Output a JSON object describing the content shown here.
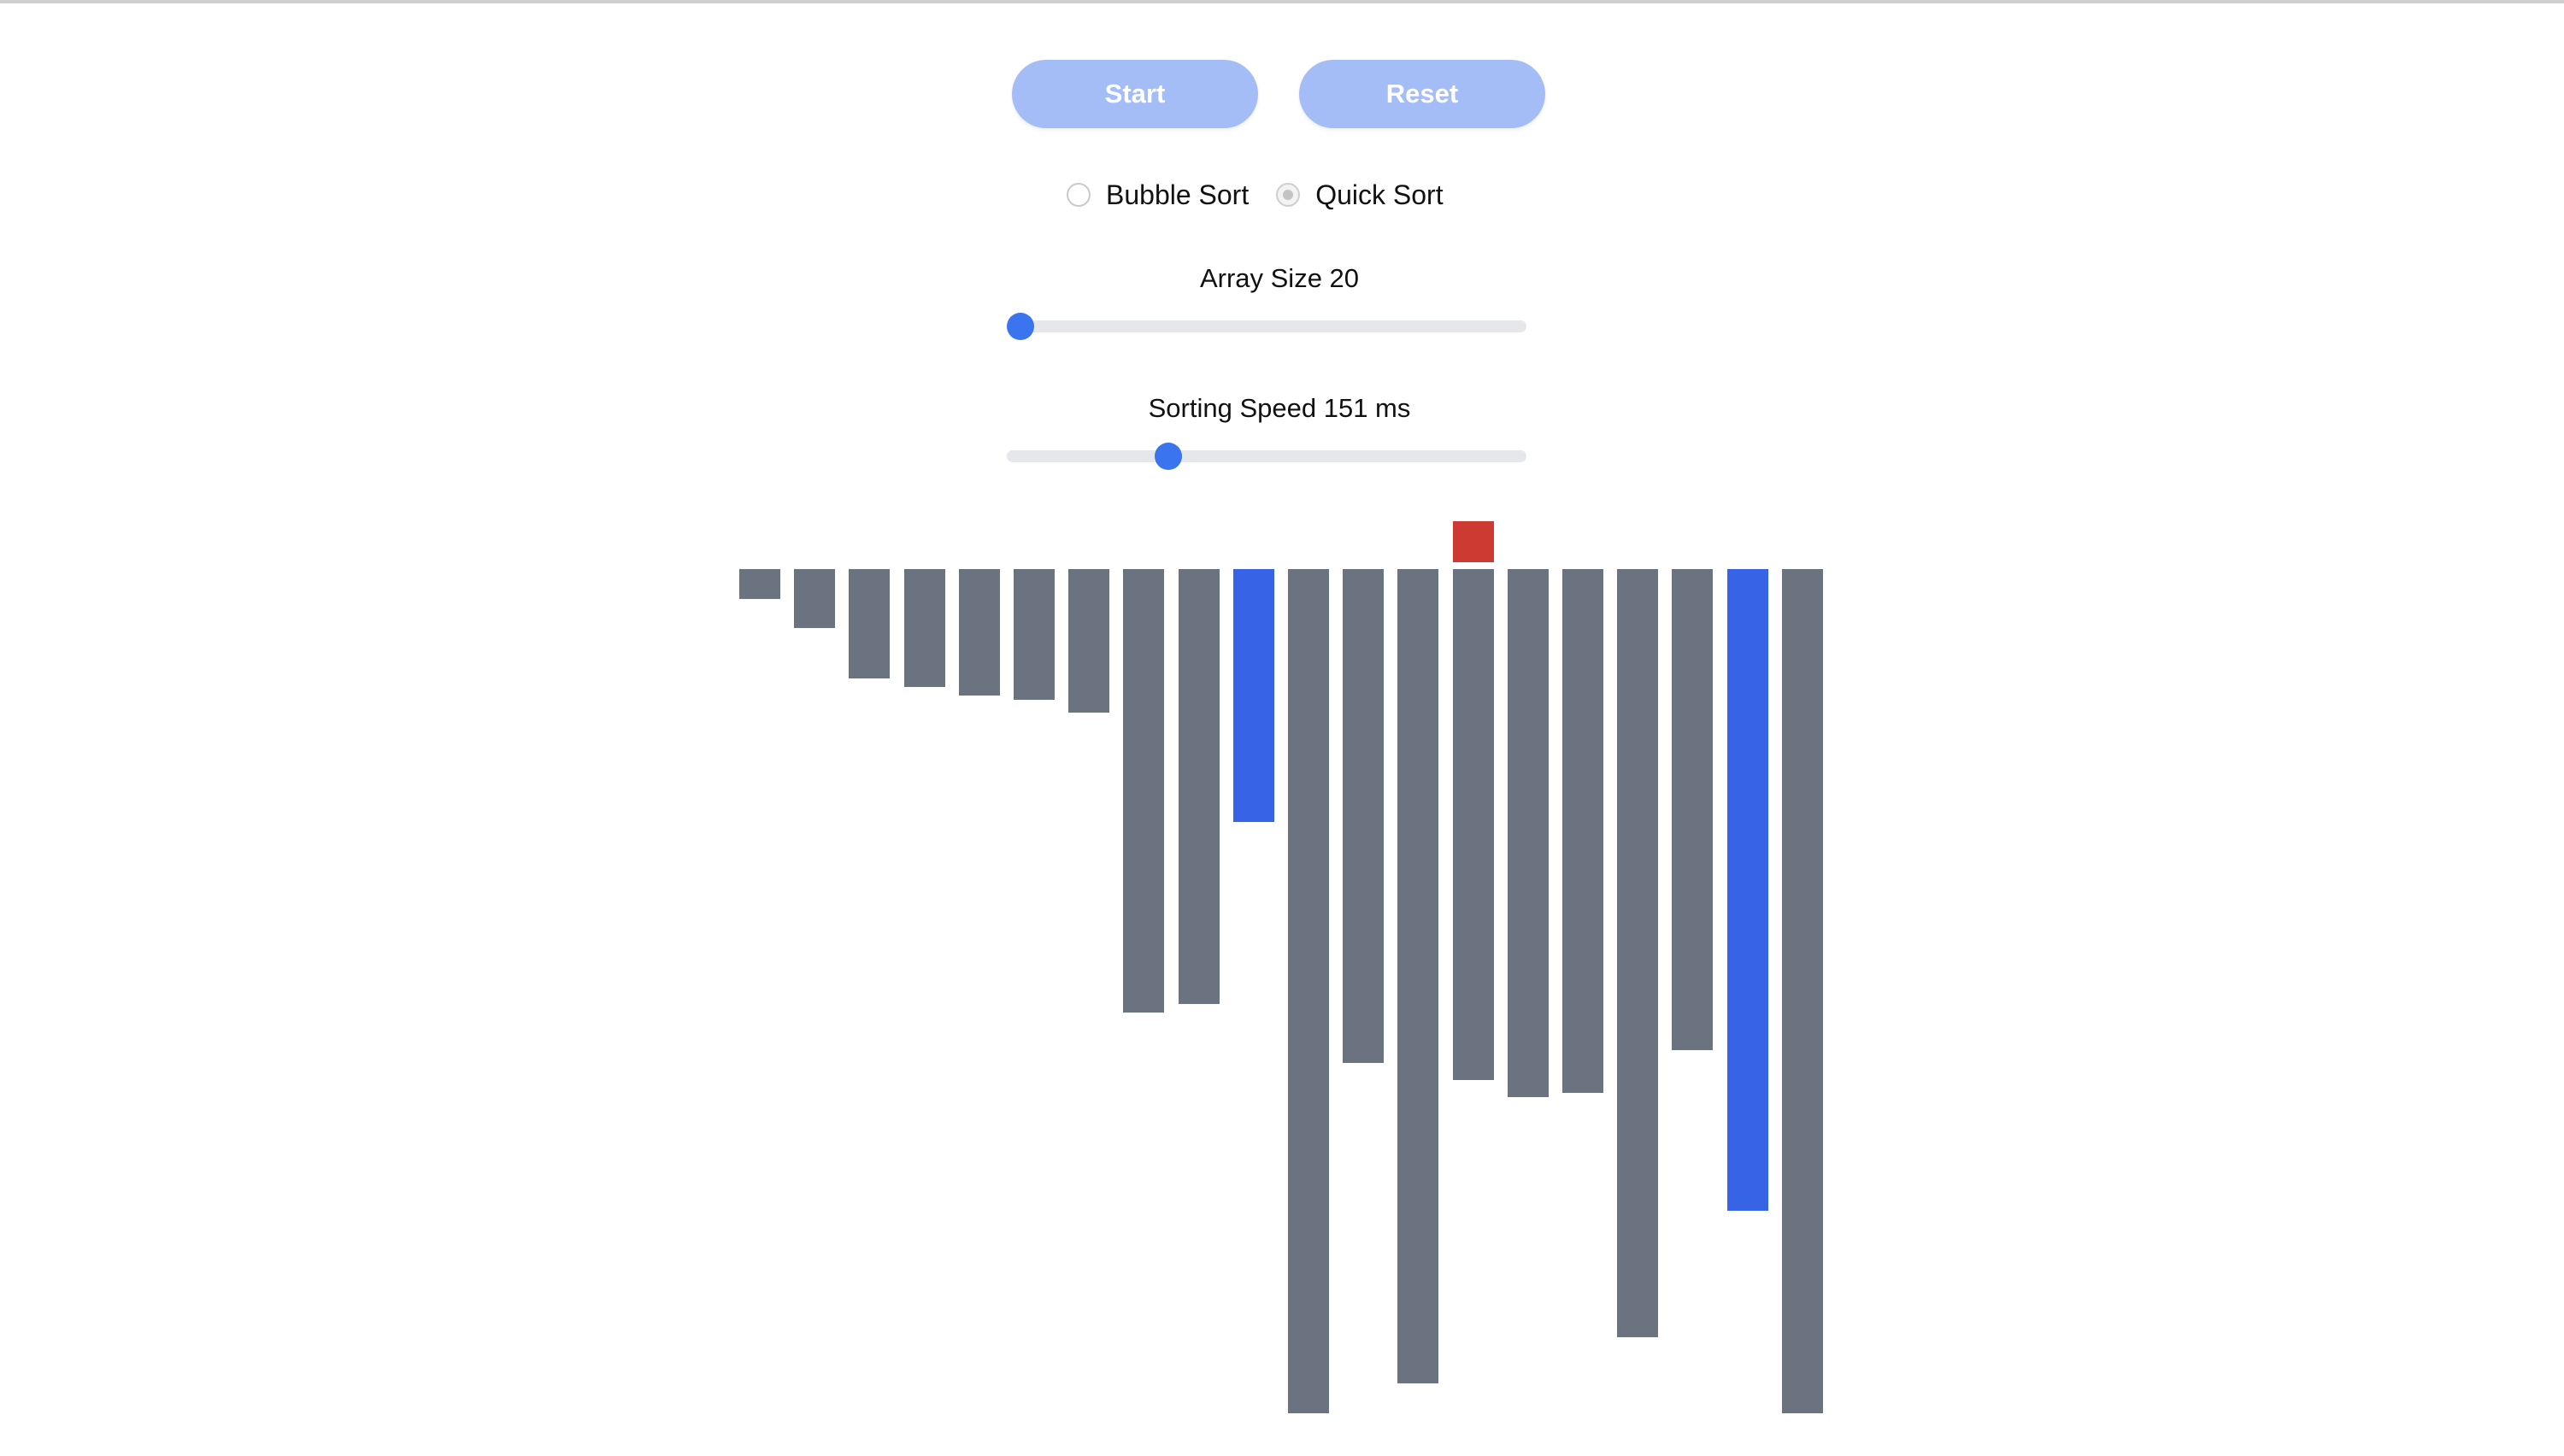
{
  "controls": {
    "start_label": "Start",
    "reset_label": "Reset",
    "button_color": "#a5bdf7"
  },
  "algorithms": {
    "options": [
      "Bubble Sort",
      "Quick Sort"
    ],
    "selected": "Quick Sort"
  },
  "array_size": {
    "label": "Array Size 20",
    "value": 20,
    "min": 20,
    "max": 100
  },
  "speed": {
    "label": "Sorting Speed 151 ms",
    "value": 151,
    "min": 1,
    "max": 500
  },
  "visualization": {
    "bar_values": [
      7,
      14,
      26,
      28,
      30,
      31,
      34,
      105,
      103,
      60,
      200,
      117,
      193,
      121,
      125,
      124,
      182,
      114,
      152,
      200
    ],
    "max_value": 200,
    "colors": {
      "default": "#6b7280",
      "compare": "#3763e6",
      "pivot": "#cc3a31"
    },
    "compare_indices": [
      9,
      18
    ],
    "pivot_index": 13
  }
}
